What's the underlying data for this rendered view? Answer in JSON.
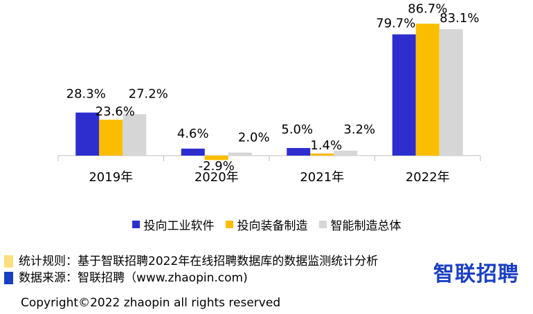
{
  "chart_data": {
    "type": "bar",
    "categories": [
      "2019年",
      "2020年",
      "2021年",
      "2022年"
    ],
    "series": [
      {
        "name": "投向工业软件",
        "color": "#2e2ecf",
        "values": [
          28.3,
          4.6,
          5.0,
          79.7
        ],
        "labels": [
          "28.3%",
          "4.6%",
          "5.0%",
          "79.7%"
        ]
      },
      {
        "name": "投向装备制造",
        "color": "#fbbd00",
        "values": [
          23.6,
          -2.9,
          1.4,
          86.7
        ],
        "labels": [
          "23.6%",
          "-2.9%",
          "1.4%",
          "86.7%"
        ]
      },
      {
        "name": "智能制造总体",
        "color": "#d6d6d6",
        "values": [
          27.2,
          2.0,
          3.2,
          83.1
        ],
        "labels": [
          "27.2%",
          "2.0%",
          "3.2%",
          "83.1%"
        ]
      }
    ],
    "legend_position": "bottom",
    "grid": false
  },
  "legend": [
    {
      "label": "投向工业软件",
      "color": "#2e2ecf"
    },
    {
      "label": "投向装备制造",
      "color": "#fbbd00"
    },
    {
      "label": "智能制造总体",
      "color": "#d6d6d6"
    }
  ],
  "notes": [
    {
      "text": "统计规则：基于智联招聘2022年在线招聘数据库的数据监测统计分析",
      "color": "#fddf7e"
    },
    {
      "text": "数据来源：智联招聘（www.zhaopin.com)",
      "color": "#1a3fc4"
    }
  ],
  "brand": "智联招聘",
  "copyright": "Copyright©2022 zhaopin all rights reserved"
}
